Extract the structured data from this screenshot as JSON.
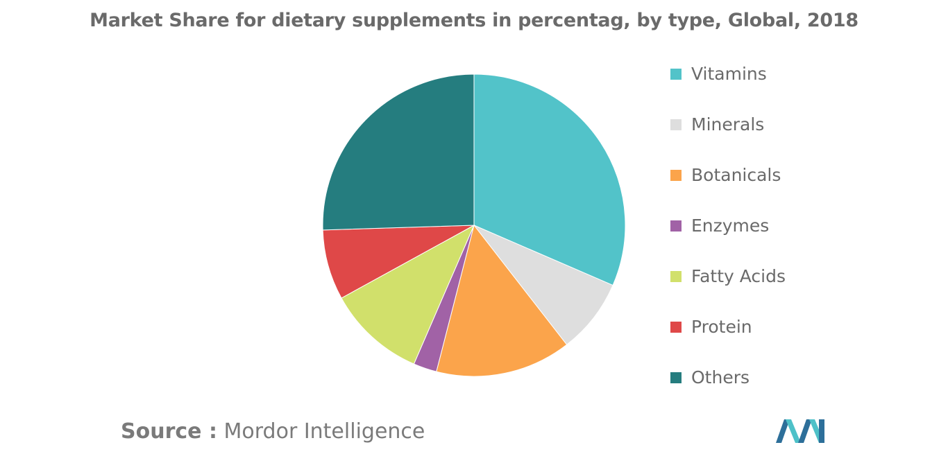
{
  "chart_data": {
    "type": "pie",
    "title": "Market Share for dietary supplements in percentag, by type, Global, 2018",
    "slices": [
      {
        "label": "Vitamins",
        "value": 31.5,
        "color": "#52c3c9"
      },
      {
        "label": "Minerals",
        "value": 8,
        "color": "#dedede"
      },
      {
        "label": "Botanicals",
        "value": 14.5,
        "color": "#fba44b"
      },
      {
        "label": "Enzymes",
        "value": 2.5,
        "color": "#a162a6"
      },
      {
        "label": "Fatty Acids",
        "value": 10.5,
        "color": "#d1e06b"
      },
      {
        "label": "Protein",
        "value": 7.5,
        "color": "#df4848"
      },
      {
        "label": "Others",
        "value": 25.5,
        "color": "#257d7f"
      }
    ],
    "legend_position": "right"
  },
  "source": {
    "prefix": "Source :",
    "name": "Mordor Intelligence"
  },
  "logo": {
    "icon": "mordor-intelligence-logo-icon",
    "colors": [
      "#2d6f9a",
      "#4ec1c8"
    ]
  }
}
